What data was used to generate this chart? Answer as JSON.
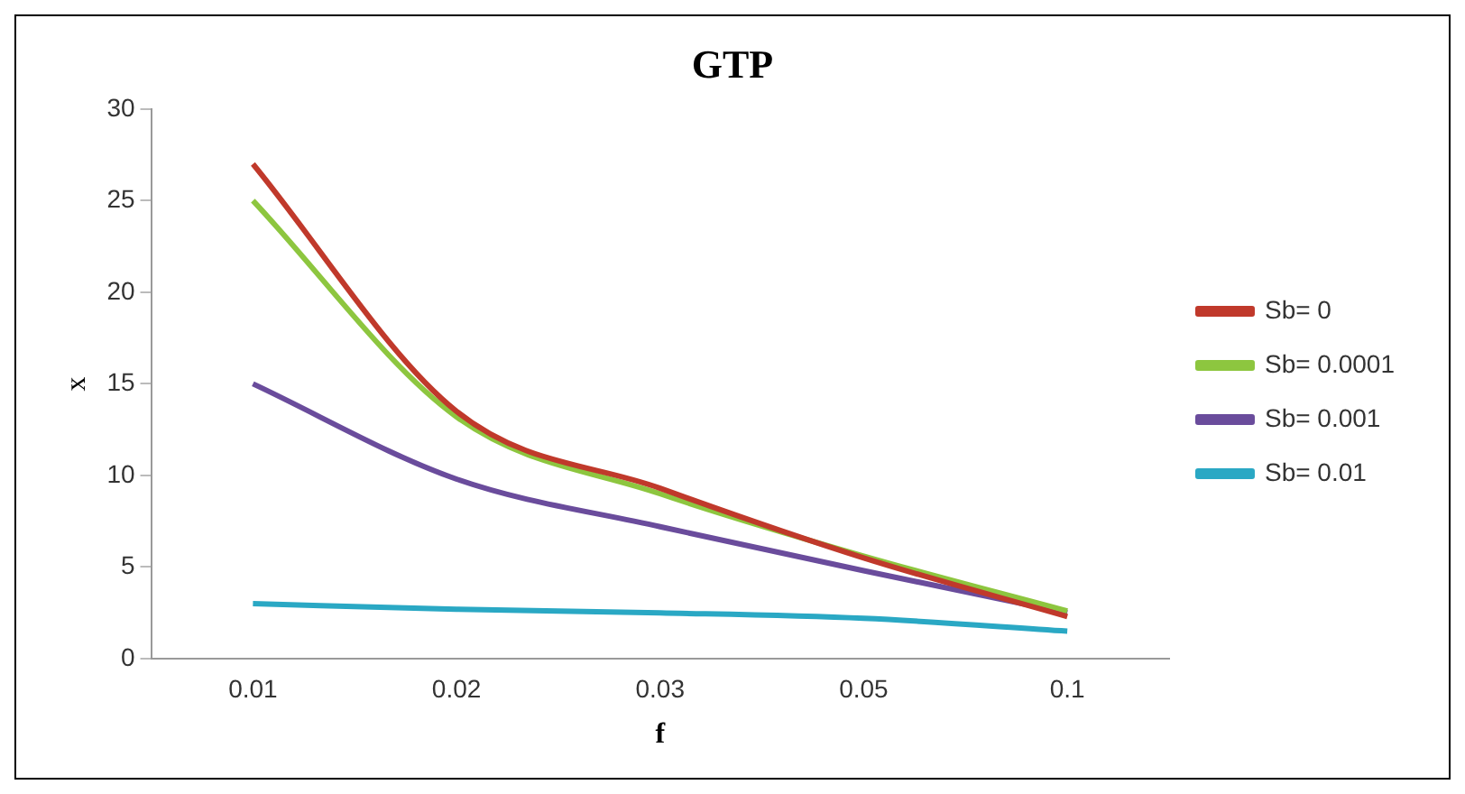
{
  "chart_data": {
    "type": "line",
    "title": "GTP",
    "xlabel": "f",
    "ylabel": "x",
    "categories": [
      "0.01",
      "0.02",
      "0.03",
      "0.05",
      "0.1"
    ],
    "series": [
      {
        "name": "Sb= 0",
        "color": "#c0392b",
        "values": [
          27,
          13.5,
          9.3,
          5.5,
          2.3
        ]
      },
      {
        "name": "Sb= 0.0001",
        "color": "#8dc63f",
        "values": [
          25,
          13.2,
          9.0,
          5.6,
          2.6
        ]
      },
      {
        "name": "Sb= 0.001",
        "color": "#6a4c9c",
        "values": [
          15,
          9.8,
          7.2,
          4.8,
          2.5
        ]
      },
      {
        "name": "Sb= 0.01",
        "color": "#2aa8c4",
        "values": [
          3.0,
          2.7,
          2.5,
          2.2,
          1.5
        ]
      }
    ],
    "ylim": [
      0,
      30
    ],
    "yticks": [
      0,
      5,
      10,
      15,
      20,
      25,
      30
    ],
    "grid": false,
    "legend": "right",
    "marker": "none",
    "line_style": "solid"
  }
}
